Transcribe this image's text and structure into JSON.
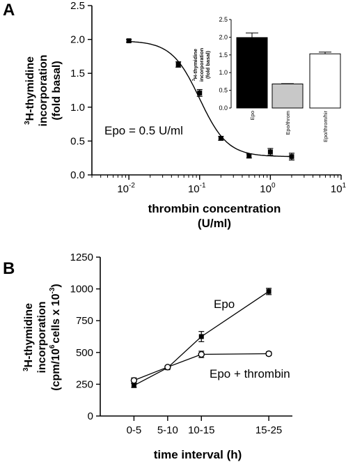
{
  "figure": {
    "panels": [
      {
        "letter": "A"
      },
      {
        "letter": "B"
      }
    ]
  },
  "chart_data": [
    {
      "panel": "A",
      "type": "scatter",
      "xscale": "log",
      "xlim": [
        0.003,
        10
      ],
      "ylim": [
        0,
        2.5
      ],
      "xlabel": [
        "thrombin concentration",
        "(U/ml)"
      ],
      "ylabel": [
        "H-thymidine",
        "incorporation",
        "(fold basal)"
      ],
      "ylabel_sup": "3",
      "x_ticks": [
        {
          "base": "10",
          "exp": "-2",
          "value": 0.01
        },
        {
          "base": "10",
          "exp": "-1",
          "value": 0.1
        },
        {
          "base": "10",
          "exp": "0",
          "value": 1
        },
        {
          "base": "10",
          "exp": "1",
          "value": 10
        }
      ],
      "y_ticks": [
        "0.0",
        "0.5",
        "1.0",
        "1.5",
        "2.0",
        "2.5"
      ],
      "y_tick_values": [
        0,
        0.5,
        1.0,
        1.5,
        2.0,
        2.5
      ],
      "annotation": "Epo = 0.5 U/ml",
      "marker": "filled-square",
      "fit_curve": {
        "top": 1.98,
        "bottom": 0.27,
        "ec50": 0.1,
        "hill": 2.2
      },
      "points": [
        {
          "x": 0.01,
          "y": 1.98,
          "err": 0.02
        },
        {
          "x": 0.05,
          "y": 1.63,
          "err": 0.04
        },
        {
          "x": 0.1,
          "y": 1.21,
          "err": 0.05
        },
        {
          "x": 0.2,
          "y": 0.54,
          "err": 0.03
        },
        {
          "x": 0.5,
          "y": 0.28,
          "err": 0.03
        },
        {
          "x": 1.0,
          "y": 0.34,
          "err": 0.05
        },
        {
          "x": 2.0,
          "y": 0.27,
          "err": 0.05
        }
      ]
    },
    {
      "panel": "A-inset",
      "type": "bar",
      "ylim": [
        0,
        2.5
      ],
      "ylabel": [
        "H-thymidine",
        "incorporation",
        "(fold basal)"
      ],
      "ylabel_sup": "3",
      "y_ticks": [
        "0.0",
        "0.5",
        "1.0",
        "1.5",
        "2.0",
        "2.5"
      ],
      "y_tick_values": [
        0,
        0.5,
        1.0,
        1.5,
        2.0,
        2.5
      ],
      "categories": [
        "Epo",
        "Epo/throm",
        "Epo/throm/hir"
      ],
      "values": [
        1.99,
        0.68,
        1.53
      ],
      "errors": [
        0.13,
        0.01,
        0.05
      ],
      "colors": [
        "#000000",
        "#c8c8c8",
        "#ffffff"
      ]
    },
    {
      "panel": "B",
      "type": "line",
      "categories": [
        "0-5",
        "5-10",
        "10-15",
        "15-25"
      ],
      "x_positions": [
        0,
        1,
        2,
        4
      ],
      "xlim": [
        -1,
        4.7
      ],
      "ylim": [
        0,
        1250
      ],
      "xlabel": "time interval (h)",
      "ylabel": [
        "H-thymidine",
        "incorporation",
        "cells x 10"
      ],
      "ylabel_parts": {
        "sup3": "3",
        "cpm": "(cpm/10",
        "sup6": "6",
        "sup_neg3": "-3",
        "close": ")"
      },
      "y_ticks": [
        "0",
        "250",
        "500",
        "750",
        "1000",
        "1250"
      ],
      "y_tick_values": [
        0,
        250,
        500,
        750,
        1000,
        1250
      ],
      "series": [
        {
          "name": "Epo",
          "marker": "filled-square",
          "values": [
            240,
            380,
            625,
            980
          ],
          "errors": [
            15,
            10,
            40,
            25
          ]
        },
        {
          "name": "Epo + thrombin",
          "marker": "open-circle",
          "values": [
            280,
            385,
            485,
            490
          ],
          "errors": [
            20,
            10,
            25,
            15
          ]
        }
      ]
    }
  ]
}
